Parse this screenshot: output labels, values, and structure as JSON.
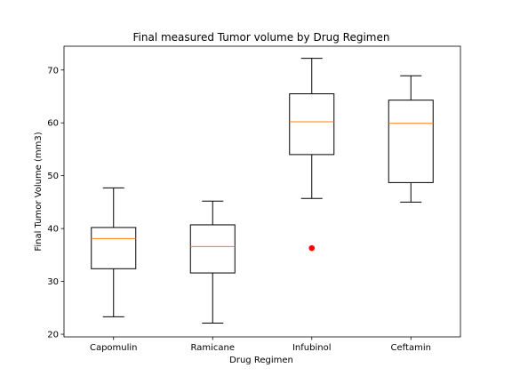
{
  "chart_data": {
    "type": "box",
    "title": "Final measured Tumor volume by Drug Regimen",
    "xlabel": "Drug Regimen",
    "ylabel": "Final Tumor Volume (mm3)",
    "ylim": [
      19.5,
      74.5
    ],
    "yticks": [
      20,
      30,
      40,
      50,
      60,
      70
    ],
    "grid": false,
    "categories": [
      "Capomulin",
      "Ramicane",
      "Infubinol",
      "Ceftamin"
    ],
    "boxes": [
      {
        "whisker_low": 23.3,
        "q1": 32.4,
        "median": 38.1,
        "q3": 40.2,
        "whisker_high": 47.7,
        "outliers": []
      },
      {
        "whisker_low": 22.1,
        "q1": 31.6,
        "median": 36.6,
        "q3": 40.7,
        "whisker_high": 45.2,
        "outliers": []
      },
      {
        "whisker_low": 45.7,
        "q1": 54.0,
        "median": 60.2,
        "q3": 65.5,
        "whisker_high": 72.2,
        "outliers": [
          36.3
        ]
      },
      {
        "whisker_low": 45.0,
        "q1": 48.7,
        "median": 59.9,
        "q3": 64.3,
        "whisker_high": 68.9,
        "outliers": []
      }
    ],
    "colors": {
      "box": "#000000",
      "median": "#ff7f0e",
      "outlier": "#ff0000"
    }
  }
}
